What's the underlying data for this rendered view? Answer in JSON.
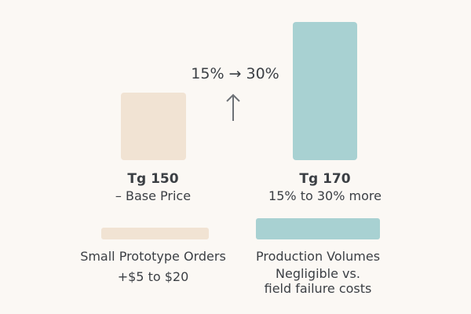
{
  "change": {
    "label": "15% → 30%"
  },
  "left": {
    "title": "Tg 150",
    "subtitle": "– Base Price",
    "bottom_title": "Small Prototype Orders",
    "bottom_subtitle": "+$5 to $20",
    "color": "#f1e3d3"
  },
  "right": {
    "title": "Tg 170",
    "subtitle": "15% to 30% more",
    "bottom_title": "Production Volumes",
    "bottom_subtitle_line1": "Negligible vs.",
    "bottom_subtitle_line2": "field failure costs",
    "color": "#a8d1d2"
  },
  "icons": {
    "increase": "arrow-up-icon"
  }
}
